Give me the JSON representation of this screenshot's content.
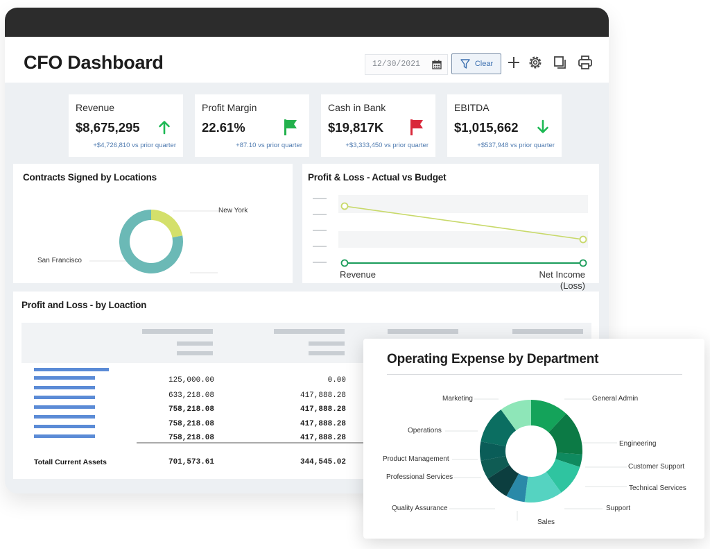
{
  "header": {
    "title": "CFO Dashboard",
    "date_value": "12/30/2021",
    "clear_label": "Clear"
  },
  "kpis": [
    {
      "label": "Revenue",
      "value": "$8,675,295",
      "sub": "+$4,726,810 vs prior quarter",
      "indicator": "arrow-up",
      "color": "#1db954"
    },
    {
      "label": "Profit Margin",
      "value": "22.61%",
      "sub": "+87.10 vs prior quarter",
      "indicator": "flag",
      "color": "#22b14c"
    },
    {
      "label": "Cash in Bank",
      "value": "$19,817K",
      "sub": "+$3,333,450 vs prior quarter",
      "indicator": "flag",
      "color": "#d9283a"
    },
    {
      "label": "EBITDA",
      "value": "$1,015,662",
      "sub": "+$537,948 vs prior quarter",
      "indicator": "arrow-down",
      "color": "#1db954"
    }
  ],
  "contracts": {
    "title": "Contracts Signed by Locations",
    "labels": {
      "new_york": "New York",
      "san_francisco": "San Francisco"
    },
    "chart_data": {
      "type": "pie",
      "categories": [
        "New York",
        "San Francisco"
      ],
      "values": [
        22,
        78
      ],
      "colors": [
        "#d4e06b",
        "#6bb9b6"
      ]
    }
  },
  "pnl_budget": {
    "title": "Profit & Loss - Actual vs Budget",
    "x_labels": [
      "Revenue",
      "Net Income\n(Loss)"
    ],
    "chart_data": {
      "type": "line",
      "x": [
        "Revenue",
        "Net Income (Loss)"
      ],
      "series": [
        {
          "values": [
            1.0,
            0.5
          ],
          "color": "#c8d96a"
        },
        {
          "values": [
            0,
            0
          ],
          "color": "#1a9c5a"
        }
      ]
    }
  },
  "pnl_location": {
    "title": "Profit and Loss - by Loaction",
    "col1": [
      "125,000.00",
      "633,218.08",
      "758,218.08",
      "758,218.08",
      "758,218.08"
    ],
    "col2": [
      "0.00",
      "417,888.28",
      "417,888.28",
      "417,888.28",
      "417,888.28"
    ],
    "total_label": "Totall Current Assets",
    "total_col1": "701,573.61",
    "total_col2": "344,545.02"
  },
  "opex": {
    "title": "Operating Expense by Department",
    "chart_data": {
      "type": "pie",
      "categories": [
        "General Admin",
        "Engineering",
        "Customer Support",
        "Technical Services",
        "Support",
        "Sales",
        "Quality Assurance",
        "Professional Services",
        "Product Management",
        "Operations",
        "Marketing"
      ],
      "values": [
        12,
        14,
        4,
        10,
        12,
        6,
        8,
        6,
        6,
        12,
        10
      ],
      "colors": [
        "#14a35a",
        "#0c7a45",
        "#0f8a5f",
        "#2fc4a0",
        "#55d3c1",
        "#2a89a8",
        "#0c3e3f",
        "#0f5c54",
        "#0a5d58",
        "#0b6e61",
        "#8ee6b8"
      ]
    }
  }
}
